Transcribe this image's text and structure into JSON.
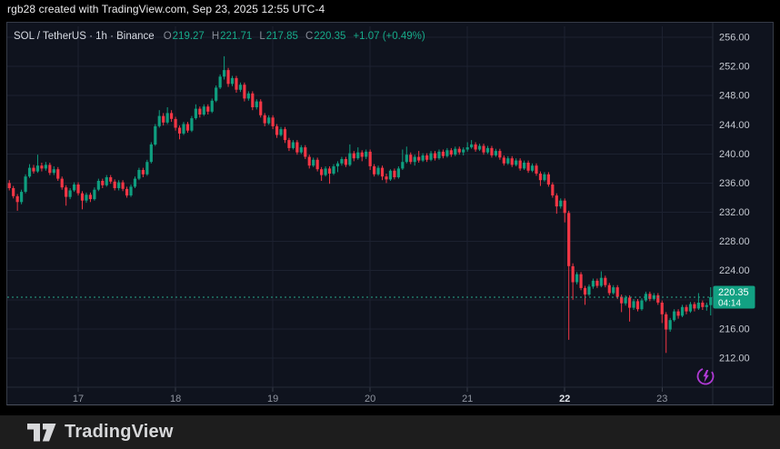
{
  "attribution": "rgb28 created with TradingView.com, Sep 23, 2025 12:55 UTC-4",
  "legend": {
    "symbol_title": "SOL / TetherUS · 1h · Binance",
    "o_label": "O",
    "o_value": "219.27",
    "h_label": "H",
    "h_value": "221.71",
    "l_label": "L",
    "l_value": "217.85",
    "c_label": "C",
    "c_value": "220.35",
    "change": "+1.07 (+0.49%)"
  },
  "last_price_label": {
    "value": "220.35",
    "countdown": "04:14"
  },
  "footer": {
    "brand": "TradingView"
  },
  "icons": {
    "flash_icon": "lightning-bolt-in-circle"
  },
  "colors": {
    "page_bg": "#000000",
    "chart_bg": "#0f131e",
    "grid": "#1c2130",
    "frame_border": "#363b47",
    "up": "#0f9e7f",
    "down": "#f23645",
    "badge_bg": "#12a183",
    "price_line": "#2aa88c",
    "axis_text": "#c5c9d1",
    "date_text": "#9196a1",
    "date_text_bold": "#dfe2e8",
    "accent_purple": "#b13ad6",
    "footer_bg": "#1d1d1d"
  },
  "chart_data": {
    "type": "candlestick",
    "symbol": "SOL / TetherUS",
    "interval": "1h",
    "exchange": "Binance",
    "ylim": [
      208.0,
      257.5
    ],
    "y_ticks": [
      212,
      216,
      220,
      224,
      228,
      232,
      236,
      240,
      244,
      248,
      252,
      256
    ],
    "grid": true,
    "last_price": 220.35,
    "countdown": "04:14",
    "day_labels": [
      {
        "label": "17",
        "index": 17,
        "bold": false
      },
      {
        "label": "18",
        "index": 41,
        "bold": false
      },
      {
        "label": "19",
        "index": 65,
        "bold": false
      },
      {
        "label": "20",
        "index": 89,
        "bold": false
      },
      {
        "label": "21",
        "index": 113,
        "bold": false
      },
      {
        "label": "22",
        "index": 137,
        "bold": true
      },
      {
        "label": "23",
        "index": 161,
        "bold": false
      }
    ],
    "candles": [
      [
        236.0,
        236.4,
        235.0,
        235.3
      ],
      [
        235.3,
        235.6,
        233.9,
        234.2
      ],
      [
        234.2,
        234.5,
        232.2,
        233.4
      ],
      [
        233.4,
        235.1,
        233.1,
        234.8
      ],
      [
        234.8,
        237.2,
        234.6,
        236.9
      ],
      [
        236.9,
        238.6,
        236.7,
        238.1
      ],
      [
        238.1,
        238.5,
        237.3,
        237.6
      ],
      [
        237.6,
        239.9,
        237.4,
        238.4
      ],
      [
        238.4,
        238.8,
        237.6,
        238.0
      ],
      [
        238.0,
        238.9,
        237.7,
        238.5
      ],
      [
        238.5,
        238.8,
        237.1,
        237.4
      ],
      [
        237.4,
        238.3,
        237.1,
        237.9
      ],
      [
        237.9,
        238.2,
        236.3,
        236.6
      ],
      [
        236.6,
        236.9,
        235.1,
        235.4
      ],
      [
        235.4,
        235.7,
        232.9,
        234.1
      ],
      [
        234.1,
        235.3,
        233.8,
        235.0
      ],
      [
        235.0,
        236.1,
        234.8,
        235.8
      ],
      [
        235.8,
        236.1,
        234.3,
        234.6
      ],
      [
        234.6,
        234.9,
        232.4,
        233.6
      ],
      [
        233.6,
        234.7,
        233.3,
        234.4
      ],
      [
        234.4,
        234.7,
        233.4,
        233.8
      ],
      [
        233.8,
        235.4,
        233.6,
        235.1
      ],
      [
        235.1,
        236.6,
        234.9,
        236.3
      ],
      [
        236.3,
        236.6,
        235.3,
        235.7
      ],
      [
        235.7,
        237.1,
        235.5,
        236.8
      ],
      [
        236.8,
        237.1,
        235.9,
        236.2
      ],
      [
        236.2,
        236.5,
        235.0,
        235.3
      ],
      [
        235.3,
        236.4,
        235.0,
        236.1
      ],
      [
        236.1,
        236.4,
        234.9,
        235.2
      ],
      [
        235.2,
        235.5,
        234.0,
        234.3
      ],
      [
        234.3,
        235.8,
        234.1,
        235.5
      ],
      [
        235.5,
        236.9,
        235.3,
        236.6
      ],
      [
        236.6,
        238.1,
        236.4,
        237.8
      ],
      [
        237.8,
        238.1,
        236.8,
        237.2
      ],
      [
        237.2,
        239.2,
        237.0,
        238.9
      ],
      [
        238.9,
        241.6,
        238.7,
        241.3
      ],
      [
        241.3,
        244.1,
        241.1,
        243.8
      ],
      [
        243.8,
        246.0,
        243.6,
        245.2
      ],
      [
        245.2,
        245.6,
        243.9,
        244.3
      ],
      [
        244.3,
        246.4,
        244.1,
        245.6
      ],
      [
        245.6,
        246.0,
        244.4,
        244.8
      ],
      [
        244.8,
        245.1,
        243.2,
        243.6
      ],
      [
        243.6,
        243.9,
        242.0,
        242.8
      ],
      [
        242.8,
        244.4,
        242.6,
        244.1
      ],
      [
        244.1,
        244.4,
        242.9,
        243.2
      ],
      [
        243.2,
        245.2,
        243.0,
        244.9
      ],
      [
        244.9,
        246.8,
        244.7,
        246.2
      ],
      [
        246.2,
        246.5,
        245.0,
        245.4
      ],
      [
        245.4,
        246.8,
        245.2,
        246.5
      ],
      [
        246.5,
        246.8,
        245.4,
        245.8
      ],
      [
        245.8,
        247.6,
        245.6,
        247.3
      ],
      [
        247.3,
        249.4,
        247.1,
        249.1
      ],
      [
        249.1,
        250.9,
        248.9,
        250.6
      ],
      [
        250.6,
        253.4,
        250.2,
        251.5
      ],
      [
        251.5,
        251.8,
        249.2,
        249.6
      ],
      [
        249.6,
        250.7,
        249.3,
        250.4
      ],
      [
        250.4,
        250.7,
        248.4,
        248.8
      ],
      [
        248.8,
        249.8,
        248.5,
        249.5
      ],
      [
        249.5,
        249.8,
        247.2,
        247.6
      ],
      [
        247.6,
        248.6,
        247.3,
        248.3
      ],
      [
        248.3,
        248.6,
        246.0,
        246.4
      ],
      [
        246.4,
        247.5,
        246.1,
        247.2
      ],
      [
        247.2,
        247.5,
        245.0,
        245.3
      ],
      [
        245.3,
        245.6,
        243.8,
        244.2
      ],
      [
        244.2,
        245.3,
        244.0,
        245.0
      ],
      [
        245.0,
        245.3,
        243.4,
        243.8
      ],
      [
        243.8,
        244.1,
        242.2,
        242.6
      ],
      [
        242.6,
        243.7,
        242.4,
        243.4
      ],
      [
        243.4,
        243.7,
        241.5,
        241.9
      ],
      [
        241.9,
        242.2,
        240.4,
        240.8
      ],
      [
        240.8,
        241.9,
        240.6,
        241.6
      ],
      [
        241.6,
        241.9,
        239.9,
        240.2
      ],
      [
        240.2,
        241.2,
        240.0,
        240.9
      ],
      [
        240.9,
        241.2,
        239.3,
        239.6
      ],
      [
        239.6,
        239.9,
        238.0,
        238.4
      ],
      [
        238.4,
        239.5,
        238.2,
        239.2
      ],
      [
        239.2,
        239.5,
        237.6,
        237.9
      ],
      [
        237.9,
        238.2,
        236.3,
        237.1
      ],
      [
        237.1,
        238.3,
        236.9,
        238.0
      ],
      [
        238.0,
        238.3,
        235.9,
        237.3
      ],
      [
        237.3,
        238.6,
        237.1,
        238.3
      ],
      [
        238.3,
        239.0,
        237.5,
        238.7
      ],
      [
        238.7,
        239.6,
        238.4,
        239.3
      ],
      [
        239.3,
        239.6,
        238.2,
        238.5
      ],
      [
        238.5,
        241.3,
        238.3,
        240.1
      ],
      [
        240.1,
        240.4,
        239.0,
        239.4
      ],
      [
        239.4,
        240.9,
        239.2,
        240.2
      ],
      [
        240.2,
        240.5,
        239.0,
        239.6
      ],
      [
        239.6,
        240.6,
        239.3,
        240.3
      ],
      [
        240.3,
        240.6,
        237.8,
        238.3
      ],
      [
        238.3,
        238.6,
        236.9,
        237.2
      ],
      [
        237.2,
        238.4,
        237.0,
        238.1
      ],
      [
        238.1,
        238.4,
        236.4,
        236.9
      ],
      [
        236.9,
        237.3,
        236.0,
        236.5
      ],
      [
        236.5,
        237.9,
        236.3,
        237.7
      ],
      [
        237.7,
        238.0,
        236.5,
        236.8
      ],
      [
        236.8,
        238.3,
        236.6,
        238.0
      ],
      [
        238.0,
        240.6,
        237.8,
        238.9
      ],
      [
        238.9,
        241.0,
        238.7,
        239.9
      ],
      [
        239.9,
        240.2,
        238.6,
        238.9
      ],
      [
        238.9,
        239.9,
        238.4,
        239.6
      ],
      [
        239.6,
        240.4,
        238.8,
        239.1
      ],
      [
        239.1,
        240.1,
        238.9,
        239.8
      ],
      [
        239.8,
        240.1,
        238.9,
        239.2
      ],
      [
        239.2,
        240.4,
        239.0,
        240.1
      ],
      [
        240.1,
        240.4,
        239.1,
        239.4
      ],
      [
        239.4,
        240.6,
        239.2,
        240.3
      ],
      [
        240.3,
        240.6,
        239.4,
        239.7
      ],
      [
        239.7,
        240.8,
        239.5,
        240.5
      ],
      [
        240.5,
        240.8,
        239.6,
        239.9
      ],
      [
        239.9,
        241.0,
        239.7,
        240.7
      ],
      [
        240.7,
        241.0,
        239.9,
        240.2
      ],
      [
        240.2,
        240.9,
        239.8,
        240.6
      ],
      [
        240.6,
        241.6,
        240.3,
        240.9
      ],
      [
        240.9,
        241.9,
        240.7,
        241.3
      ],
      [
        241.3,
        241.6,
        240.3,
        240.6
      ],
      [
        240.6,
        241.4,
        240.4,
        241.1
      ],
      [
        241.1,
        241.4,
        239.9,
        240.2
      ],
      [
        240.2,
        241.1,
        240.0,
        240.8
      ],
      [
        240.8,
        241.1,
        239.5,
        239.8
      ],
      [
        239.8,
        240.7,
        239.6,
        240.4
      ],
      [
        240.4,
        240.7,
        239.2,
        239.5
      ],
      [
        239.5,
        239.8,
        238.4,
        238.7
      ],
      [
        238.7,
        239.7,
        238.5,
        239.4
      ],
      [
        239.4,
        239.7,
        238.2,
        238.5
      ],
      [
        238.5,
        239.4,
        238.3,
        239.1
      ],
      [
        239.1,
        239.4,
        237.7,
        238.0
      ],
      [
        238.0,
        239.1,
        237.8,
        238.8
      ],
      [
        238.8,
        239.1,
        237.4,
        237.7
      ],
      [
        237.7,
        238.7,
        237.5,
        238.4
      ],
      [
        238.4,
        238.7,
        237.0,
        237.3
      ],
      [
        237.3,
        237.6,
        235.6,
        236.4
      ],
      [
        236.4,
        237.5,
        236.2,
        237.2
      ],
      [
        237.2,
        237.5,
        235.5,
        235.8
      ],
      [
        235.8,
        236.1,
        234.0,
        234.3
      ],
      [
        234.3,
        234.6,
        231.8,
        232.8
      ],
      [
        232.8,
        233.9,
        232.5,
        233.6
      ],
      [
        233.6,
        233.9,
        230.6,
        231.9
      ],
      [
        231.9,
        232.2,
        214.5,
        224.6
      ],
      [
        224.6,
        225.0,
        220.0,
        222.4
      ],
      [
        222.4,
        223.8,
        222.1,
        223.5
      ],
      [
        223.5,
        223.8,
        221.3,
        221.6
      ],
      [
        221.6,
        221.9,
        219.3,
        220.7
      ],
      [
        220.7,
        222.1,
        220.5,
        221.8
      ],
      [
        221.8,
        222.9,
        221.5,
        222.6
      ],
      [
        222.6,
        222.9,
        221.6,
        221.9
      ],
      [
        221.9,
        223.9,
        221.7,
        223.0
      ],
      [
        223.0,
        223.3,
        221.7,
        222.0
      ],
      [
        222.0,
        222.3,
        220.6,
        220.9
      ],
      [
        220.9,
        222.0,
        220.7,
        221.7
      ],
      [
        221.7,
        222.0,
        220.1,
        220.4
      ],
      [
        220.4,
        220.7,
        218.3,
        219.5
      ],
      [
        219.5,
        220.6,
        219.2,
        220.3
      ],
      [
        220.3,
        220.6,
        217.0,
        218.9
      ],
      [
        218.9,
        220.1,
        218.6,
        219.8
      ],
      [
        219.8,
        220.1,
        218.4,
        218.7
      ],
      [
        218.7,
        220.2,
        218.5,
        219.9
      ],
      [
        219.9,
        221.1,
        219.7,
        220.8
      ],
      [
        220.8,
        221.1,
        219.8,
        220.1
      ],
      [
        220.1,
        220.9,
        219.9,
        220.6
      ],
      [
        220.6,
        220.9,
        219.3,
        219.6
      ],
      [
        219.6,
        219.9,
        216.8,
        218.0
      ],
      [
        218.0,
        218.3,
        212.7,
        215.9
      ],
      [
        215.9,
        217.5,
        215.6,
        217.2
      ],
      [
        217.2,
        218.7,
        217.0,
        218.4
      ],
      [
        218.4,
        218.7,
        217.4,
        217.8
      ],
      [
        217.8,
        219.3,
        217.6,
        219.0
      ],
      [
        219.0,
        219.3,
        218.0,
        218.4
      ],
      [
        218.4,
        219.7,
        218.2,
        219.4
      ],
      [
        219.4,
        219.7,
        218.4,
        218.8
      ],
      [
        218.8,
        220.9,
        218.6,
        219.6
      ],
      [
        219.6,
        219.9,
        218.6,
        219.0
      ],
      [
        219.0,
        219.6,
        218.5,
        219.27
      ],
      [
        219.27,
        221.71,
        217.85,
        220.35
      ]
    ]
  }
}
